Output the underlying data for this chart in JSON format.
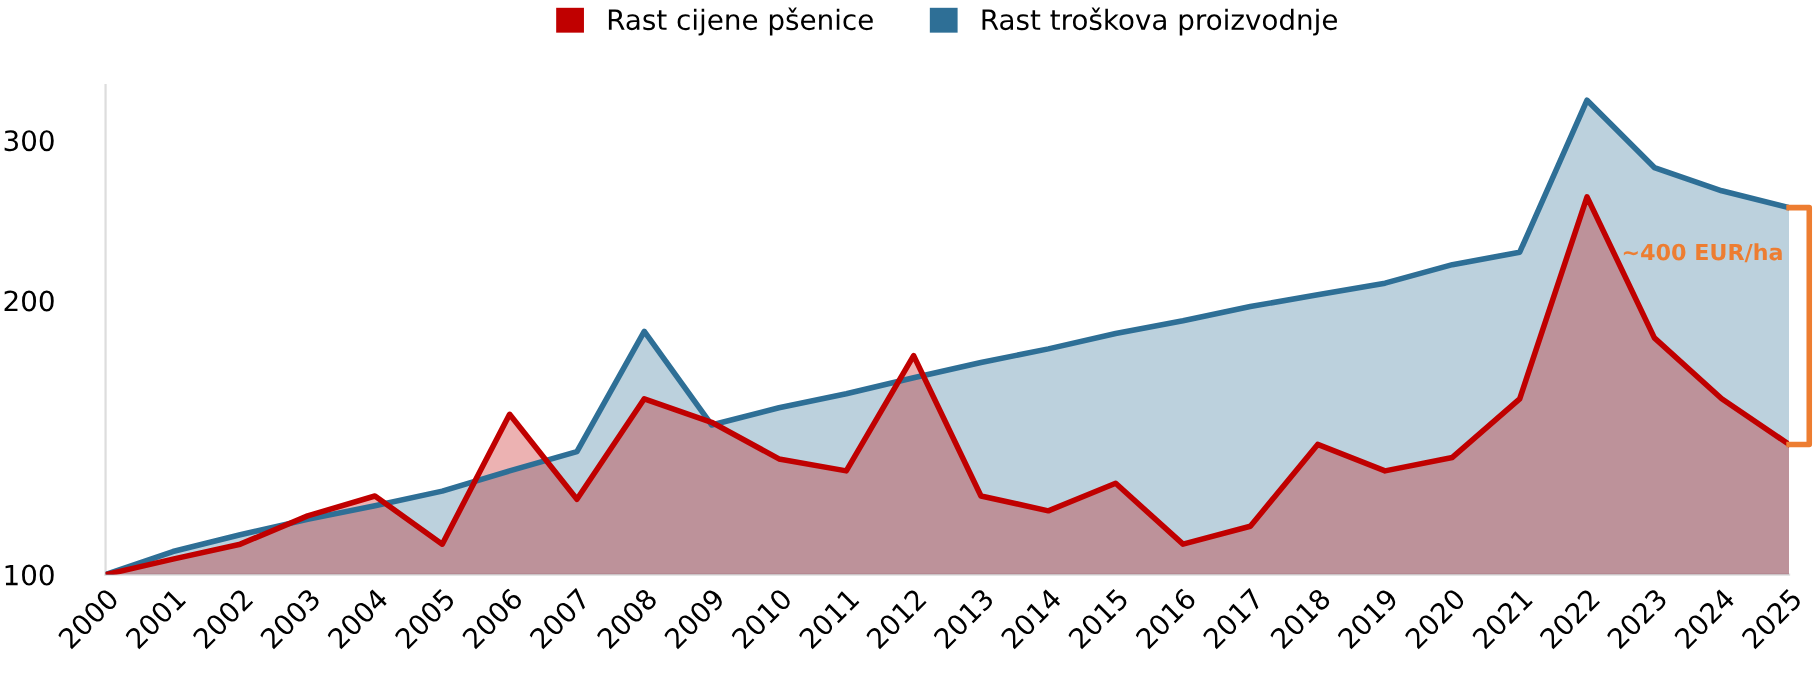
{
  "chart_data": {
    "type": "area",
    "log": true,
    "x": [
      2000,
      2001,
      2002,
      2003,
      2004,
      2005,
      2006,
      2007,
      2008,
      2009,
      2010,
      2011,
      2012,
      2013,
      2014,
      2015,
      2016,
      2017,
      2018,
      2019,
      2020,
      2021,
      2022,
      2023,
      2024,
      2025
    ],
    "series": [
      {
        "name": "Rast cijene pšenice",
        "color": "#c00000",
        "values": [
          100,
          104,
          108,
          116,
          122,
          108,
          150,
          121,
          156,
          147,
          134,
          130,
          174,
          122,
          117.5,
          126,
          108,
          113,
          139,
          130,
          134.5,
          156,
          260,
          182,
          156,
          139
        ]
      },
      {
        "name": "Rast troškova proizvodnje",
        "color": "#2e6f96",
        "values": [
          100,
          106,
          110.6,
          115,
          119,
          123.5,
          130,
          136.5,
          185,
          146,
          152.5,
          158,
          164.5,
          171,
          177,
          184,
          190,
          197,
          203,
          209,
          219,
          226,
          332,
          280,
          264,
          253
        ]
      }
    ],
    "xlim": [
      2000,
      2025
    ],
    "xticks": [
      2000,
      2001,
      2002,
      2003,
      2004,
      2005,
      2006,
      2007,
      2008,
      2009,
      2010,
      2011,
      2012,
      2013,
      2014,
      2015,
      2016,
      2017,
      2018,
      2019,
      2020,
      2021,
      2022,
      2023,
      2024,
      2025
    ],
    "ylim": [
      100,
      345
    ],
    "yticks": [
      100,
      200,
      300
    ],
    "grid": false,
    "legend": "top",
    "annotations": [
      {
        "text": "~400 EUR/ha",
        "x": 2025,
        "y": 225
      }
    ]
  }
}
